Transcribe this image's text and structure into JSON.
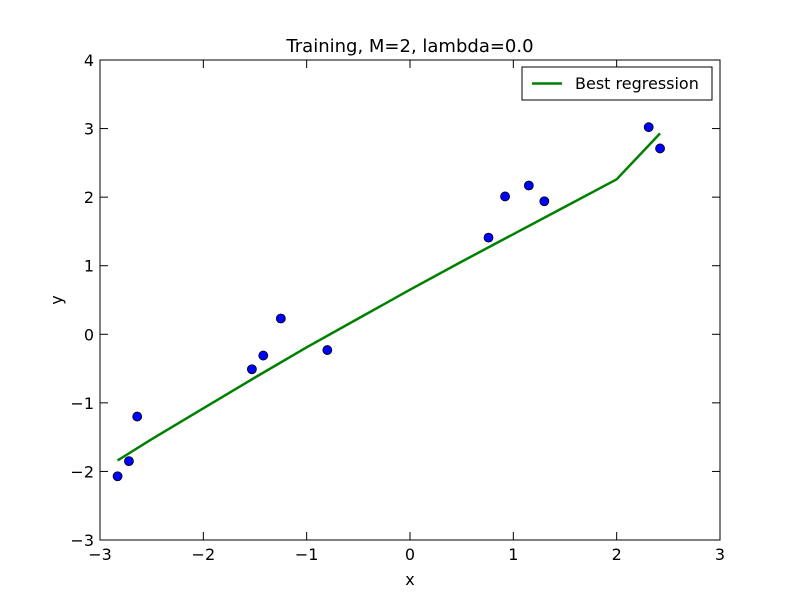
{
  "chart_data": {
    "type": "scatter",
    "title": "Training, M=2, lambda=0.0",
    "xlabel": "x",
    "ylabel": "y",
    "xlim": [
      -3,
      3
    ],
    "ylim": [
      -3,
      4
    ],
    "xticks": [
      -3,
      -2,
      -1,
      0,
      1,
      2,
      3
    ],
    "yticks": [
      -3,
      -2,
      -1,
      0,
      1,
      2,
      3,
      4
    ],
    "xtick_labels": [
      "−3",
      "−2",
      "−1",
      "0",
      "1",
      "2",
      "3"
    ],
    "ytick_labels": [
      "−3",
      "−2",
      "−1",
      "0",
      "1",
      "2",
      "3",
      "4"
    ],
    "grid": false,
    "legend_position": "top-right",
    "series": [
      {
        "kind": "scatter",
        "color": "#0000ff",
        "points": [
          {
            "x": -2.83,
            "y": -2.07
          },
          {
            "x": -2.72,
            "y": -1.85
          },
          {
            "x": -2.64,
            "y": -1.2
          },
          {
            "x": -1.53,
            "y": -0.51
          },
          {
            "x": -1.42,
            "y": -0.31
          },
          {
            "x": -1.25,
            "y": 0.23
          },
          {
            "x": -0.8,
            "y": -0.23
          },
          {
            "x": 0.76,
            "y": 1.41
          },
          {
            "x": 0.92,
            "y": 2.01
          },
          {
            "x": 1.15,
            "y": 2.17
          },
          {
            "x": 1.3,
            "y": 1.94
          },
          {
            "x": 2.31,
            "y": 3.02
          },
          {
            "x": 2.42,
            "y": 2.71
          }
        ]
      },
      {
        "kind": "line",
        "name": "Best regression",
        "color": "#008000",
        "x": [
          -2.83,
          -2.5,
          -2.0,
          -1.5,
          -1.0,
          -0.5,
          0.0,
          0.5,
          1.0,
          1.5,
          2.0,
          2.42
        ],
        "y": [
          -1.84,
          -1.53,
          -1.08,
          -0.63,
          -0.19,
          0.23,
          0.65,
          1.06,
          1.46,
          1.86,
          2.26,
          2.93
        ]
      }
    ]
  }
}
